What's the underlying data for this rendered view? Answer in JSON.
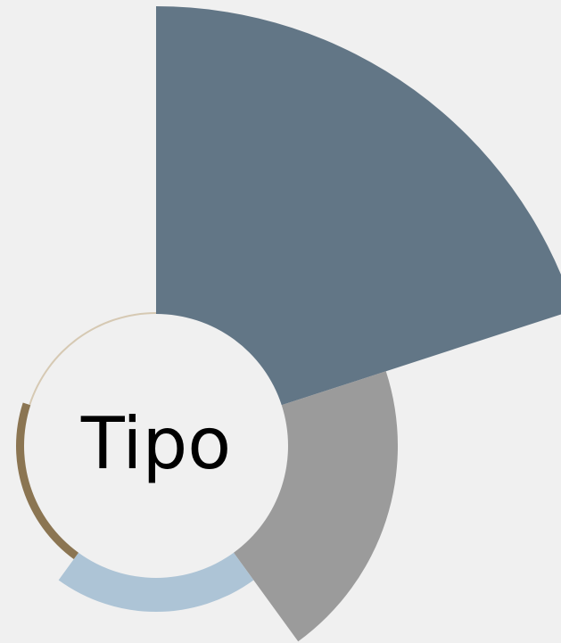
{
  "chart_data": {
    "type": "polar-area",
    "title": "Tipo",
    "values": [
      345,
      123,
      38,
      9,
      2
    ],
    "colors": [
      "#627686",
      "#9b9b9b",
      "#adc4d6",
      "#8b7552",
      "#d6c9b3"
    ]
  }
}
